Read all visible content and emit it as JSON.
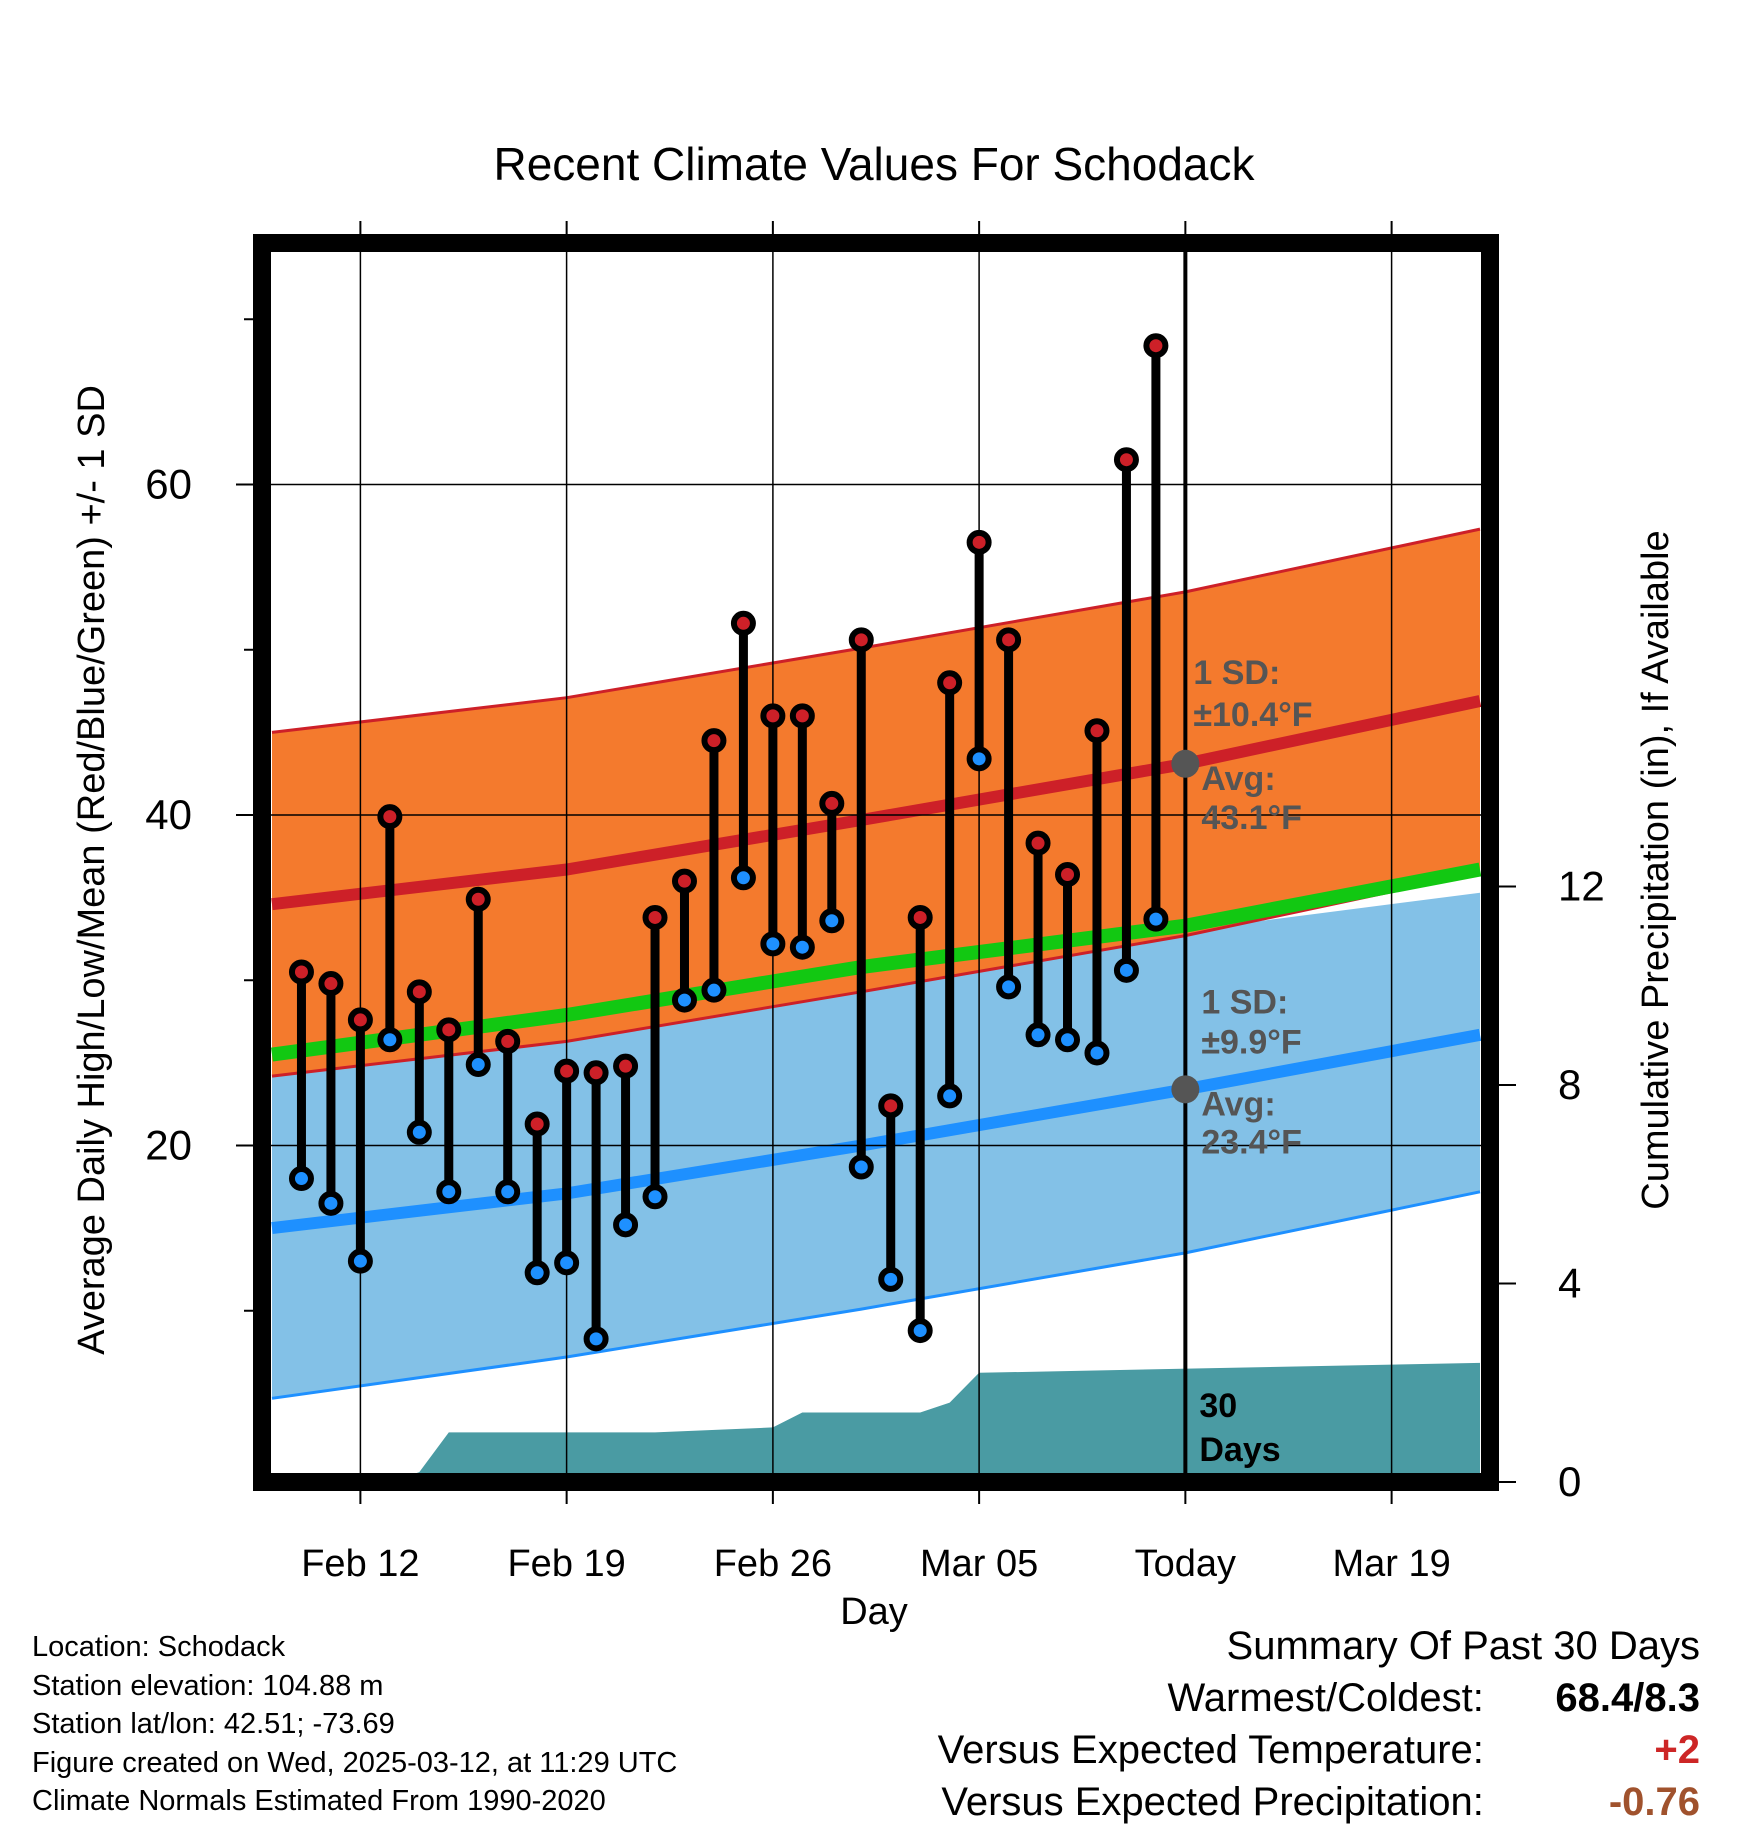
{
  "chart_data": {
    "type": "line",
    "title": "Recent Climate Values For Schodack",
    "xlabel": "Day",
    "ylabel_left": "Average Daily High/Low/Mean (Red/Blue/Green) +/- 1 SD",
    "ylabel_right": "Cumulative Precipitation (in), If Available",
    "y_left_range": [
      0,
      73
    ],
    "y_right_range": [
      0,
      25
    ],
    "x_range_days": [
      "2025-02-09",
      "2025-03-22"
    ],
    "x_ticks": [
      {
        "day": "2025-02-12",
        "label": "Feb 12"
      },
      {
        "day": "2025-02-19",
        "label": "Feb 19"
      },
      {
        "day": "2025-02-26",
        "label": "Feb 26"
      },
      {
        "day": "2025-03-05",
        "label": "Mar 05"
      },
      {
        "day": "2025-03-12",
        "label": "Today"
      },
      {
        "day": "2025-03-19",
        "label": "Mar 19"
      }
    ],
    "y_left_ticks": [
      20,
      40,
      60
    ],
    "y_right_ticks": [
      0,
      4,
      8,
      12
    ],
    "grid": true,
    "today": "2025-03-12",
    "observed": {
      "days": [
        "2025-02-10",
        "2025-02-11",
        "2025-02-12",
        "2025-02-13",
        "2025-02-14",
        "2025-02-15",
        "2025-02-16",
        "2025-02-17",
        "2025-02-18",
        "2025-02-19",
        "2025-02-20",
        "2025-02-21",
        "2025-02-22",
        "2025-02-23",
        "2025-02-24",
        "2025-02-25",
        "2025-02-26",
        "2025-02-27",
        "2025-02-28",
        "2025-03-01",
        "2025-03-02",
        "2025-03-03",
        "2025-03-04",
        "2025-03-05",
        "2025-03-06",
        "2025-03-07",
        "2025-03-08",
        "2025-03-09",
        "2025-03-10",
        "2025-03-11"
      ],
      "high": [
        30.5,
        29.8,
        27.6,
        39.9,
        29.3,
        27.0,
        34.9,
        26.3,
        21.3,
        24.5,
        24.4,
        24.8,
        33.8,
        36.0,
        44.5,
        51.6,
        46.0,
        46.0,
        40.7,
        50.6,
        22.4,
        33.8,
        48.0,
        56.5,
        50.6,
        38.3,
        36.4,
        45.1,
        61.5,
        68.4
      ],
      "low": [
        18.0,
        16.5,
        13.0,
        26.4,
        20.8,
        17.2,
        24.9,
        17.2,
        12.3,
        12.9,
        8.3,
        15.2,
        16.9,
        28.8,
        29.4,
        36.2,
        32.2,
        32.0,
        33.6,
        18.7,
        11.9,
        8.8,
        23.0,
        43.4,
        29.6,
        26.7,
        26.4,
        25.6,
        30.6,
        33.7
      ]
    },
    "normals": {
      "days": [
        "2025-02-09",
        "2025-02-19",
        "2025-03-01",
        "2025-03-12",
        "2025-03-22"
      ],
      "high_avg": [
        34.6,
        36.7,
        39.7,
        43.1,
        46.9
      ],
      "high_upper": [
        45.0,
        47.1,
        50.1,
        53.5,
        57.3
      ],
      "high_lower": [
        24.2,
        26.3,
        29.3,
        32.7,
        36.5
      ],
      "low_avg": [
        15.0,
        17.1,
        20.0,
        23.4,
        26.7
      ],
      "low_upper": [
        26.3,
        28.3,
        31.0,
        33.0,
        35.3
      ],
      "low_lower": [
        4.7,
        7.2,
        10.1,
        13.5,
        17.2
      ],
      "mean_avg": [
        25.5,
        27.9,
        30.8,
        33.3,
        36.7
      ],
      "color_high": "#F47A2D",
      "color_low": "#83C1E7",
      "color_mean": "#12C812",
      "color_high_line": "#CD2028",
      "color_low_line": "#1E90FF"
    },
    "precipitation": {
      "color": "#4A9BA3",
      "days": [
        "2025-02-09",
        "2025-02-13",
        "2025-02-14",
        "2025-02-15",
        "2025-02-22",
        "2025-02-26",
        "2025-02-27",
        "2025-03-03",
        "2025-03-04",
        "2025-03-05",
        "2025-03-22"
      ],
      "cumulative": [
        0,
        0,
        0.2,
        1.0,
        1.0,
        1.1,
        1.4,
        1.4,
        1.6,
        2.2,
        2.4
      ]
    },
    "annotations": {
      "high": {
        "sd_label": "1 SD:",
        "sd_value": "±10.4°F",
        "avg_label": "Avg:",
        "avg_value": "43.1°F",
        "value": 43.1
      },
      "low": {
        "sd_label": "1 SD:",
        "sd_value": "±9.9°F",
        "avg_label": "Avg:",
        "avg_value": "23.4°F",
        "value": 23.4
      },
      "precip": {
        "line1": "30",
        "line2": "Days"
      }
    }
  },
  "footer": {
    "location": "Location: Schodack",
    "elevation": "Station elevation: 104.88 m",
    "latlon": "Station lat/lon: 42.51; -73.69",
    "created": "Figure created on Wed, 2025-03-12, at 11:29 UTC",
    "normals": "Climate Normals Estimated From 1990-2020"
  },
  "summary": {
    "title": "Summary Of Past 30 Days",
    "warm_cold_label": "Warmest/Coldest:",
    "warm_cold_value": "68.4/8.3",
    "temp_label": "Versus Expected Temperature:",
    "temp_value": "+2",
    "temp_color": "#CD2626",
    "precip_label": "Versus Expected Precipitation:",
    "precip_value": "-0.76",
    "precip_color": "#A0522D"
  }
}
